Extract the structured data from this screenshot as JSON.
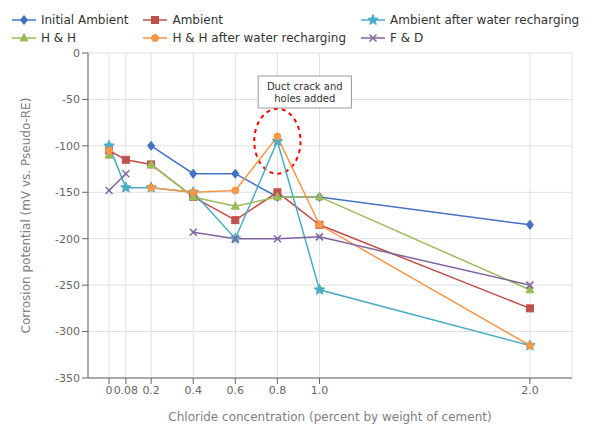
{
  "chart_data": {
    "type": "line",
    "x": [
      0,
      0.08,
      0.2,
      0.4,
      0.6,
      0.8,
      1.0,
      2.0
    ],
    "series": [
      {
        "name": "Initial Ambient",
        "color": "#4472C4",
        "marker": "diamond",
        "values": [
          -105,
          null,
          -100,
          -130,
          -130,
          -155,
          -155,
          -185
        ]
      },
      {
        "name": "Ambient",
        "color": "#C0504D",
        "marker": "square",
        "values": [
          -105,
          -115,
          -120,
          -155,
          -180,
          -150,
          -185,
          -275
        ]
      },
      {
        "name": "Ambient after water recharging",
        "color": "#4BACC6",
        "marker": "star",
        "values": [
          -100,
          -145,
          -145,
          -150,
          -200,
          -95,
          -255,
          -315
        ]
      },
      {
        "name": "H & H",
        "color": "#9BBB59",
        "marker": "triangle",
        "values": [
          -110,
          null,
          -120,
          -155,
          -165,
          -155,
          -155,
          -255
        ]
      },
      {
        "name": "H & H after water recharging",
        "color": "#F79646",
        "marker": "circle",
        "values": [
          -105,
          null,
          -145,
          -150,
          -148,
          -90,
          -185,
          -315
        ]
      },
      {
        "name": "F & D",
        "color": "#8064A2",
        "marker": "x",
        "values": [
          -148,
          -130,
          null,
          -193,
          -200,
          -200,
          -198,
          -250
        ]
      }
    ],
    "xlim": [
      -0.1,
      2.2
    ],
    "xticks": [
      0,
      0.08,
      0.2,
      0.4,
      0.6,
      0.8,
      {
        "value": 1.0,
        "label": "1.0"
      },
      {
        "value": 2.0,
        "label": "2.0"
      }
    ],
    "ylim": [
      -350,
      0
    ],
    "yticks": [
      0,
      -50,
      -100,
      -150,
      -200,
      -250,
      -300,
      -350
    ],
    "xlabel": "Chloride concentration (percent by weight of cement)",
    "ylabel": "Corrosion potential (mV vs. Pseudo-RE)",
    "annotations": [
      {
        "text": "Duct crack and\nholes added",
        "x": 0.93,
        "y": -42
      }
    ],
    "ellipse": {
      "x": 0.8,
      "y": -95,
      "width": 0.22,
      "height": 70,
      "color": "red"
    },
    "grid": true,
    "legend": "top"
  }
}
